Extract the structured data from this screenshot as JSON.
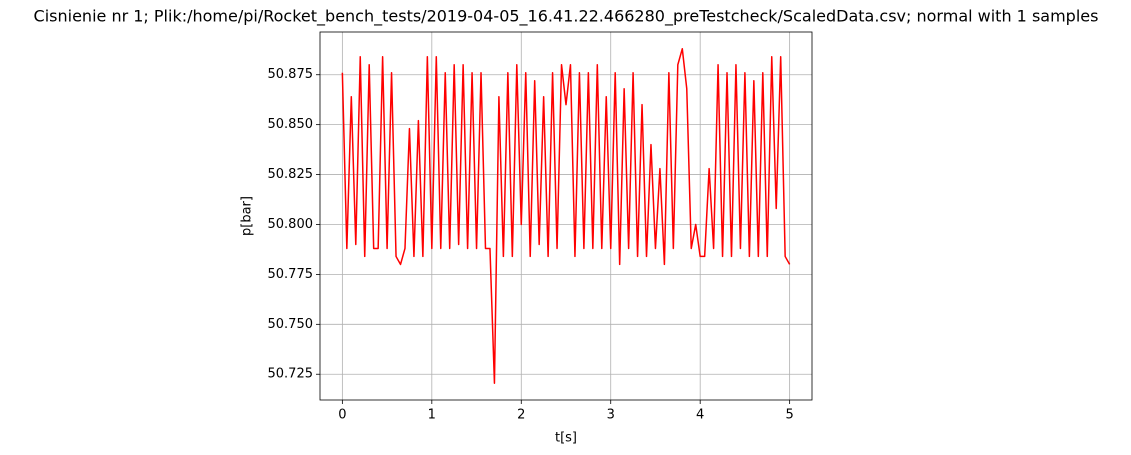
{
  "chart_data": {
    "type": "line",
    "title": "Cisnienie nr 1; Plik:/home/pi/Rocket_bench_tests/2019-04-05_16.41.22.466280_preTestcheck/ScaledData.csv; normal with 1 samples",
    "x_label": "t[s]",
    "y_label": "p[bar]",
    "x": [
      0,
      0.05,
      0.1,
      0.15,
      0.2,
      0.25,
      0.3,
      0.35,
      0.4,
      0.45,
      0.5,
      0.55,
      0.6,
      0.65,
      0.7,
      0.75,
      0.8,
      0.85,
      0.9,
      0.95,
      1.0,
      1.05,
      1.1,
      1.15,
      1.2,
      1.25,
      1.3,
      1.35,
      1.4,
      1.45,
      1.5,
      1.55,
      1.6,
      1.65,
      1.7,
      1.75,
      1.8,
      1.85,
      1.9,
      1.95,
      2.0,
      2.05,
      2.1,
      2.15,
      2.2,
      2.25,
      2.3,
      2.35,
      2.4,
      2.45,
      2.5,
      2.55,
      2.6,
      2.65,
      2.7,
      2.75,
      2.8,
      2.85,
      2.9,
      2.95,
      3.0,
      3.05,
      3.1,
      3.15,
      3.2,
      3.25,
      3.3,
      3.35,
      3.4,
      3.45,
      3.5,
      3.55,
      3.6,
      3.65,
      3.7,
      3.75,
      3.8,
      3.85,
      3.9,
      3.95,
      4.0,
      4.05,
      4.1,
      4.15,
      4.2,
      4.25,
      4.3,
      4.35,
      4.4,
      4.45,
      4.5,
      4.55,
      4.6,
      4.65,
      4.7,
      4.75,
      4.8,
      4.85,
      4.9,
      4.95,
      5.0
    ],
    "series": [
      {
        "color": "#ff0000",
        "values": [
          50.876,
          50.788,
          50.864,
          50.79,
          50.884,
          50.784,
          50.88,
          50.788,
          50.788,
          50.884,
          50.788,
          50.876,
          50.784,
          50.78,
          50.788,
          50.848,
          50.784,
          50.852,
          50.784,
          50.884,
          50.788,
          50.884,
          50.788,
          50.876,
          50.788,
          50.88,
          50.79,
          50.88,
          50.788,
          50.876,
          50.788,
          50.876,
          50.788,
          50.788,
          50.7205,
          50.864,
          50.784,
          50.876,
          50.784,
          50.88,
          50.8,
          50.876,
          50.784,
          50.872,
          50.79,
          50.864,
          50.784,
          50.876,
          50.788,
          50.88,
          50.86,
          50.88,
          50.784,
          50.876,
          50.788,
          50.876,
          50.788,
          50.88,
          50.788,
          50.864,
          50.788,
          50.876,
          50.78,
          50.868,
          50.788,
          50.876,
          50.784,
          50.86,
          50.784,
          50.84,
          50.788,
          50.828,
          50.78,
          50.876,
          50.788,
          50.88,
          50.888,
          50.868,
          50.788,
          50.8,
          50.784,
          50.784,
          50.828,
          50.788,
          50.88,
          50.784,
          50.876,
          50.784,
          50.88,
          50.788,
          50.876,
          50.784,
          50.872,
          50.784,
          50.876,
          50.784,
          50.884,
          50.808,
          50.884,
          50.784,
          50.78
        ]
      }
    ],
    "xlim": [
      -0.25,
      5.25
    ],
    "ylim": [
      50.7121,
      50.8964
    ],
    "xticks": [
      0,
      1,
      2,
      3,
      4,
      5
    ],
    "yticks": [
      50.725,
      {
        "value": 50.75,
        "label": "50.750"
      },
      50.775,
      {
        "value": 50.8,
        "label": "50.800"
      },
      50.825,
      {
        "value": 50.85,
        "label": "50.850"
      },
      50.875
    ],
    "grid": true
  }
}
